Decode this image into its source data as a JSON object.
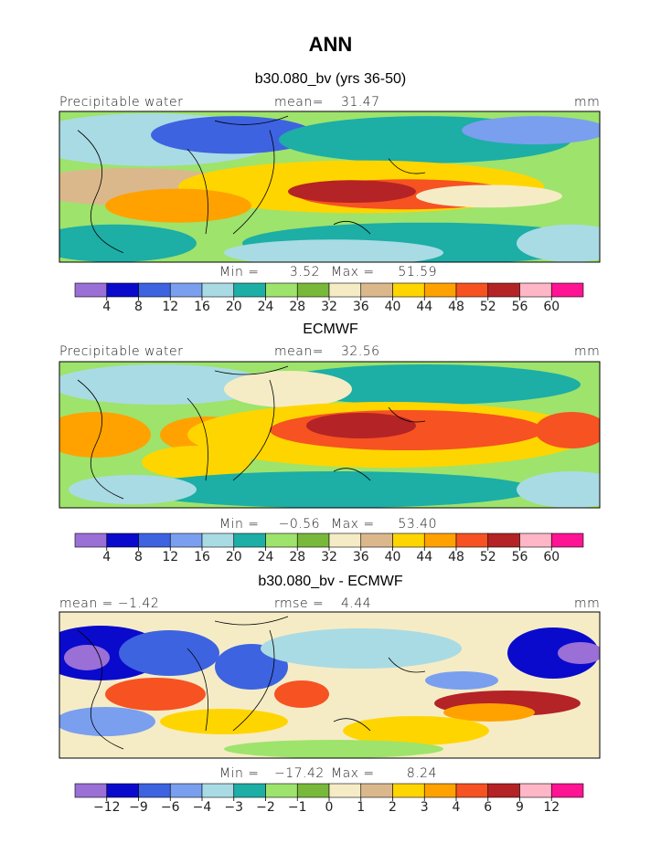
{
  "chart_data": {
    "type": "contour_map",
    "title": "ANN",
    "panels": [
      {
        "id": "model",
        "title": "b30.080_bv (yrs 36-50)",
        "left_label": "Precipitable water",
        "center_label_name": "mean=",
        "center_label_value": "31.47",
        "right_label": "mm",
        "min_label": "Min =",
        "min_value": "3.52",
        "max_label": "Max =",
        "max_value": "51.59",
        "levels": [
          "4",
          "8",
          "12",
          "16",
          "20",
          "24",
          "28",
          "32",
          "36",
          "40",
          "44",
          "48",
          "52",
          "56",
          "60"
        ],
        "colors": [
          "#9a6fd6",
          "#0a0acd",
          "#3d63e0",
          "#7a9fef",
          "#a9dbe4",
          "#1daea6",
          "#9ee36c",
          "#78b83a",
          "#f5ecc6",
          "#dbb88c",
          "#ffd500",
          "#ffa200",
          "#f65222",
          "#b42325",
          "#ffb6c6",
          "#ff1493"
        ]
      },
      {
        "id": "obs",
        "title": "ECMWF",
        "left_label": "Precipitable water",
        "center_label_name": "mean=",
        "center_label_value": "32.56",
        "right_label": "mm",
        "min_label": "Min =",
        "min_value": "−0.56",
        "max_label": "Max =",
        "max_value": "53.40",
        "levels": [
          "4",
          "8",
          "12",
          "16",
          "20",
          "24",
          "28",
          "32",
          "36",
          "40",
          "44",
          "48",
          "52",
          "56",
          "60"
        ],
        "colors": [
          "#9a6fd6",
          "#0a0acd",
          "#3d63e0",
          "#7a9fef",
          "#a9dbe4",
          "#1daea6",
          "#9ee36c",
          "#78b83a",
          "#f5ecc6",
          "#dbb88c",
          "#ffd500",
          "#ffa200",
          "#f65222",
          "#b42325",
          "#ffb6c6",
          "#ff1493"
        ]
      },
      {
        "id": "diff",
        "title": "b30.080_bv - ECMWF",
        "left_label": "mean =  −1.42",
        "center_label_name": "rmse =",
        "center_label_value": "4.44",
        "right_label": "mm",
        "min_label": "Min =",
        "min_value": "−17.42",
        "max_label": "Max =",
        "max_value": "8.24",
        "levels": [
          "−12",
          "−9",
          "−6",
          "−4",
          "−3",
          "−2",
          "−1",
          "0",
          "1",
          "2",
          "3",
          "4",
          "6",
          "9",
          "12"
        ],
        "colors": [
          "#9a6fd6",
          "#0a0acd",
          "#3d63e0",
          "#7a9fef",
          "#a9dbe4",
          "#1daea6",
          "#9ee36c",
          "#78b83a",
          "#f5ecc6",
          "#dbb88c",
          "#ffd500",
          "#ffa200",
          "#f65222",
          "#b42325",
          "#ffb6c6",
          "#ff1493"
        ]
      }
    ]
  }
}
